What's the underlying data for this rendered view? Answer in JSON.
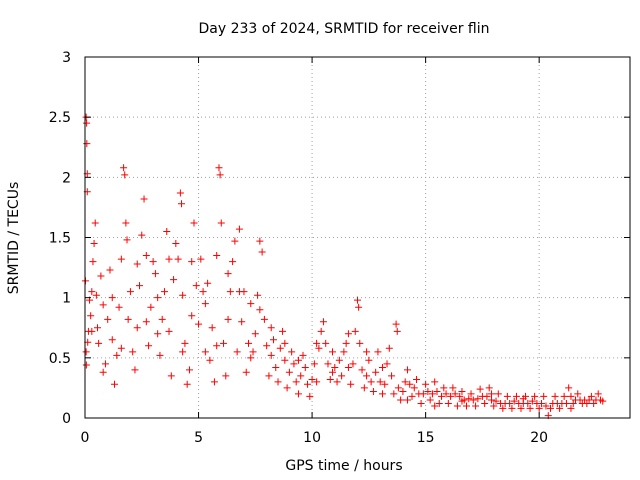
{
  "chart_data": {
    "type": "scatter",
    "title": "Day 233 of 2024, SRMTID for receiver flin",
    "xlabel": "GPS time / hours",
    "ylabel": "SRMTID / TECUs",
    "xlim": [
      0,
      24
    ],
    "ylim": [
      0,
      3
    ],
    "xticks": [
      0,
      5,
      10,
      15,
      20
    ],
    "yticks": [
      0,
      0.5,
      1,
      1.5,
      2,
      2.5,
      3
    ],
    "xtick_labels": [
      "0",
      "5",
      "10",
      "15",
      "20"
    ],
    "ytick_labels": [
      "0",
      "0.5",
      "1",
      "1.5",
      "2",
      "2.5",
      "3"
    ],
    "grid": true,
    "marker": "plus",
    "color": "#ff0000",
    "series": [
      {
        "name": "SRMTID",
        "points": [
          [
            0.05,
            2.5
          ],
          [
            0.07,
            2.45
          ],
          [
            0.08,
            2.28
          ],
          [
            0.1,
            2.03
          ],
          [
            0.1,
            1.88
          ],
          [
            0.02,
            1.14
          ],
          [
            0.05,
            0.55
          ],
          [
            0.06,
            0.44
          ],
          [
            0.12,
            0.63
          ],
          [
            0.15,
            0.72
          ],
          [
            0.2,
            0.98
          ],
          [
            0.25,
            0.85
          ],
          [
            0.3,
            1.05
          ],
          [
            0.35,
            1.3
          ],
          [
            0.4,
            1.45
          ],
          [
            0.45,
            1.62
          ],
          [
            0.5,
            1.02
          ],
          [
            0.55,
            0.75
          ],
          [
            0.6,
            0.62
          ],
          [
            0.7,
            1.18
          ],
          [
            0.8,
            0.94
          ],
          [
            0.9,
            0.45
          ],
          [
            1.0,
            0.82
          ],
          [
            1.1,
            1.23
          ],
          [
            1.2,
            0.65
          ],
          [
            1.3,
            0.28
          ],
          [
            1.4,
            0.52
          ],
          [
            1.5,
            0.92
          ],
          [
            1.6,
            1.32
          ],
          [
            1.7,
            2.08
          ],
          [
            1.75,
            2.02
          ],
          [
            1.8,
            1.62
          ],
          [
            1.85,
            1.48
          ],
          [
            1.9,
            0.82
          ],
          [
            2.0,
            1.05
          ],
          [
            2.1,
            0.55
          ],
          [
            2.2,
            0.4
          ],
          [
            2.3,
            0.75
          ],
          [
            2.4,
            1.1
          ],
          [
            2.5,
            1.52
          ],
          [
            2.6,
            1.82
          ],
          [
            2.7,
            1.35
          ],
          [
            2.8,
            0.6
          ],
          [
            2.9,
            0.92
          ],
          [
            3.0,
            1.3
          ],
          [
            3.1,
            1.2
          ],
          [
            3.2,
            0.7
          ],
          [
            3.3,
            0.52
          ],
          [
            3.4,
            0.82
          ],
          [
            3.5,
            1.05
          ],
          [
            3.6,
            1.55
          ],
          [
            3.7,
            1.32
          ],
          [
            3.8,
            0.35
          ],
          [
            3.9,
            1.15
          ],
          [
            4.0,
            1.45
          ],
          [
            4.1,
            1.32
          ],
          [
            4.2,
            1.87
          ],
          [
            4.25,
            1.78
          ],
          [
            4.3,
            1.02
          ],
          [
            4.4,
            0.62
          ],
          [
            4.5,
            0.28
          ],
          [
            4.6,
            0.4
          ],
          [
            4.7,
            1.3
          ],
          [
            4.8,
            1.62
          ],
          [
            4.9,
            1.1
          ],
          [
            5.0,
            0.78
          ],
          [
            5.1,
            1.32
          ],
          [
            5.2,
            1.05
          ],
          [
            5.3,
            0.55
          ],
          [
            5.4,
            1.12
          ],
          [
            5.5,
            0.48
          ],
          [
            5.6,
            0.75
          ],
          [
            5.7,
            0.3
          ],
          [
            5.8,
            1.35
          ],
          [
            5.9,
            2.08
          ],
          [
            5.95,
            2.02
          ],
          [
            6.0,
            1.62
          ],
          [
            6.1,
            0.62
          ],
          [
            6.2,
            0.35
          ],
          [
            6.3,
            0.82
          ],
          [
            6.4,
            1.05
          ],
          [
            6.5,
            1.3
          ],
          [
            6.6,
            1.47
          ],
          [
            6.7,
            0.55
          ],
          [
            6.8,
            1.57
          ],
          [
            6.9,
            0.8
          ],
          [
            7.0,
            1.05
          ],
          [
            7.1,
            0.38
          ],
          [
            7.2,
            0.62
          ],
          [
            7.3,
            0.95
          ],
          [
            7.4,
            0.55
          ],
          [
            7.5,
            0.7
          ],
          [
            7.6,
            1.02
          ],
          [
            7.7,
            1.47
          ],
          [
            7.8,
            1.38
          ],
          [
            7.9,
            0.82
          ],
          [
            8.0,
            0.6
          ],
          [
            8.1,
            0.35
          ],
          [
            8.2,
            0.52
          ],
          [
            8.3,
            0.65
          ],
          [
            8.4,
            0.42
          ],
          [
            8.5,
            0.3
          ],
          [
            8.6,
            0.58
          ],
          [
            8.7,
            0.72
          ],
          [
            8.8,
            0.48
          ],
          [
            8.9,
            0.25
          ],
          [
            9.0,
            0.38
          ],
          [
            9.1,
            0.55
          ],
          [
            9.2,
            0.45
          ],
          [
            9.3,
            0.3
          ],
          [
            9.4,
            0.2
          ],
          [
            9.5,
            0.35
          ],
          [
            9.6,
            0.52
          ],
          [
            9.7,
            0.42
          ],
          [
            9.8,
            0.28
          ],
          [
            9.9,
            0.18
          ],
          [
            10.0,
            0.32
          ],
          [
            10.1,
            0.45
          ],
          [
            10.2,
            0.3
          ],
          [
            10.3,
            0.58
          ],
          [
            10.4,
            0.72
          ],
          [
            10.5,
            0.8
          ],
          [
            10.6,
            0.62
          ],
          [
            10.7,
            0.45
          ],
          [
            10.8,
            0.32
          ],
          [
            10.9,
            0.55
          ],
          [
            11.0,
            0.42
          ],
          [
            11.1,
            0.3
          ],
          [
            11.2,
            0.48
          ],
          [
            11.3,
            0.35
          ],
          [
            11.4,
            0.55
          ],
          [
            11.5,
            0.62
          ],
          [
            11.6,
            0.42
          ],
          [
            11.7,
            0.28
          ],
          [
            11.8,
            0.45
          ],
          [
            11.9,
            0.72
          ],
          [
            12.0,
            0.98
          ],
          [
            12.05,
            0.92
          ],
          [
            12.1,
            0.62
          ],
          [
            12.2,
            0.4
          ],
          [
            12.3,
            0.25
          ],
          [
            12.4,
            0.35
          ],
          [
            12.5,
            0.48
          ],
          [
            12.6,
            0.3
          ],
          [
            12.7,
            0.22
          ],
          [
            12.8,
            0.38
          ],
          [
            12.9,
            0.55
          ],
          [
            13.0,
            0.3
          ],
          [
            13.1,
            0.2
          ],
          [
            13.2,
            0.28
          ],
          [
            13.3,
            0.45
          ],
          [
            13.4,
            0.58
          ],
          [
            13.5,
            0.35
          ],
          [
            13.6,
            0.2
          ],
          [
            13.7,
            0.78
          ],
          [
            13.75,
            0.72
          ],
          [
            13.8,
            0.25
          ],
          [
            13.9,
            0.15
          ],
          [
            14.0,
            0.22
          ],
          [
            14.1,
            0.3
          ],
          [
            14.2,
            0.4
          ],
          [
            14.3,
            0.28
          ],
          [
            14.4,
            0.18
          ],
          [
            14.5,
            0.25
          ],
          [
            14.6,
            0.32
          ],
          [
            14.7,
            0.2
          ],
          [
            14.8,
            0.12
          ],
          [
            14.9,
            0.2
          ],
          [
            15.0,
            0.28
          ],
          [
            15.1,
            0.22
          ],
          [
            15.2,
            0.15
          ],
          [
            15.3,
            0.2
          ],
          [
            15.4,
            0.3
          ],
          [
            15.5,
            0.22
          ],
          [
            15.6,
            0.12
          ],
          [
            15.7,
            0.18
          ],
          [
            15.8,
            0.25
          ],
          [
            15.9,
            0.2
          ],
          [
            16.0,
            0.12
          ],
          [
            16.1,
            0.18
          ],
          [
            16.2,
            0.25
          ],
          [
            16.3,
            0.2
          ],
          [
            16.4,
            0.1
          ],
          [
            16.5,
            0.18
          ],
          [
            16.6,
            0.22
          ],
          [
            16.7,
            0.15
          ],
          [
            16.8,
            0.1
          ],
          [
            16.9,
            0.16
          ],
          [
            17.0,
            0.2
          ],
          [
            17.1,
            0.15
          ],
          [
            17.2,
            0.1
          ],
          [
            17.3,
            0.16
          ],
          [
            17.4,
            0.24
          ],
          [
            17.5,
            0.18
          ],
          [
            17.6,
            0.12
          ],
          [
            17.7,
            0.18
          ],
          [
            17.8,
            0.25
          ],
          [
            17.9,
            0.15
          ],
          [
            18.0,
            0.1
          ],
          [
            18.1,
            0.14
          ],
          [
            18.2,
            0.2
          ],
          [
            18.3,
            0.12
          ],
          [
            18.4,
            0.08
          ],
          [
            18.5,
            0.12
          ],
          [
            18.6,
            0.18
          ],
          [
            18.7,
            0.12
          ],
          [
            18.8,
            0.08
          ],
          [
            18.9,
            0.14
          ],
          [
            19.0,
            0.18
          ],
          [
            19.1,
            0.12
          ],
          [
            19.2,
            0.08
          ],
          [
            19.3,
            0.12
          ],
          [
            19.4,
            0.18
          ],
          [
            19.5,
            0.12
          ],
          [
            19.6,
            0.08
          ],
          [
            19.7,
            0.14
          ],
          [
            19.8,
            0.18
          ],
          [
            19.9,
            0.12
          ],
          [
            20.0,
            0.08
          ],
          [
            20.1,
            0.12
          ],
          [
            20.2,
            0.18
          ],
          [
            20.3,
            0.1
          ],
          [
            20.4,
            0.02
          ],
          [
            20.5,
            0.08
          ],
          [
            20.6,
            0.12
          ],
          [
            20.7,
            0.18
          ],
          [
            20.8,
            0.12
          ],
          [
            20.9,
            0.08
          ],
          [
            21.0,
            0.12
          ],
          [
            21.1,
            0.18
          ],
          [
            21.2,
            0.12
          ],
          [
            21.3,
            0.25
          ],
          [
            21.4,
            0.18
          ],
          [
            21.5,
            0.12
          ],
          [
            21.6,
            0.15
          ],
          [
            21.7,
            0.2
          ],
          [
            21.8,
            0.15
          ],
          [
            21.9,
            0.12
          ],
          [
            22.0,
            0.15
          ],
          [
            22.1,
            0.12
          ],
          [
            22.2,
            0.15
          ],
          [
            22.3,
            0.18
          ],
          [
            22.4,
            0.12
          ],
          [
            22.5,
            0.15
          ],
          [
            22.6,
            0.2
          ],
          [
            22.7,
            0.15
          ],
          [
            22.8,
            0.14
          ],
          [
            0.3,
            0.72
          ],
          [
            0.8,
            0.38
          ],
          [
            1.2,
            1.0
          ],
          [
            1.6,
            0.58
          ],
          [
            2.3,
            1.28
          ],
          [
            2.7,
            0.8
          ],
          [
            3.2,
            1.0
          ],
          [
            3.7,
            0.72
          ],
          [
            4.3,
            0.55
          ],
          [
            4.7,
            0.85
          ],
          [
            5.3,
            0.95
          ],
          [
            5.8,
            0.6
          ],
          [
            6.3,
            1.2
          ],
          [
            6.8,
            1.05
          ],
          [
            7.3,
            0.5
          ],
          [
            7.7,
            0.9
          ],
          [
            8.2,
            0.75
          ],
          [
            8.8,
            0.62
          ],
          [
            9.4,
            0.48
          ],
          [
            10.2,
            0.62
          ],
          [
            10.9,
            0.38
          ],
          [
            11.6,
            0.7
          ],
          [
            12.4,
            0.55
          ],
          [
            13.1,
            0.42
          ],
          [
            14.2,
            0.15
          ],
          [
            15.4,
            0.1
          ],
          [
            16.6,
            0.14
          ],
          [
            17.9,
            0.2
          ],
          [
            19.3,
            0.16
          ],
          [
            21.4,
            0.08
          ]
        ]
      }
    ]
  }
}
